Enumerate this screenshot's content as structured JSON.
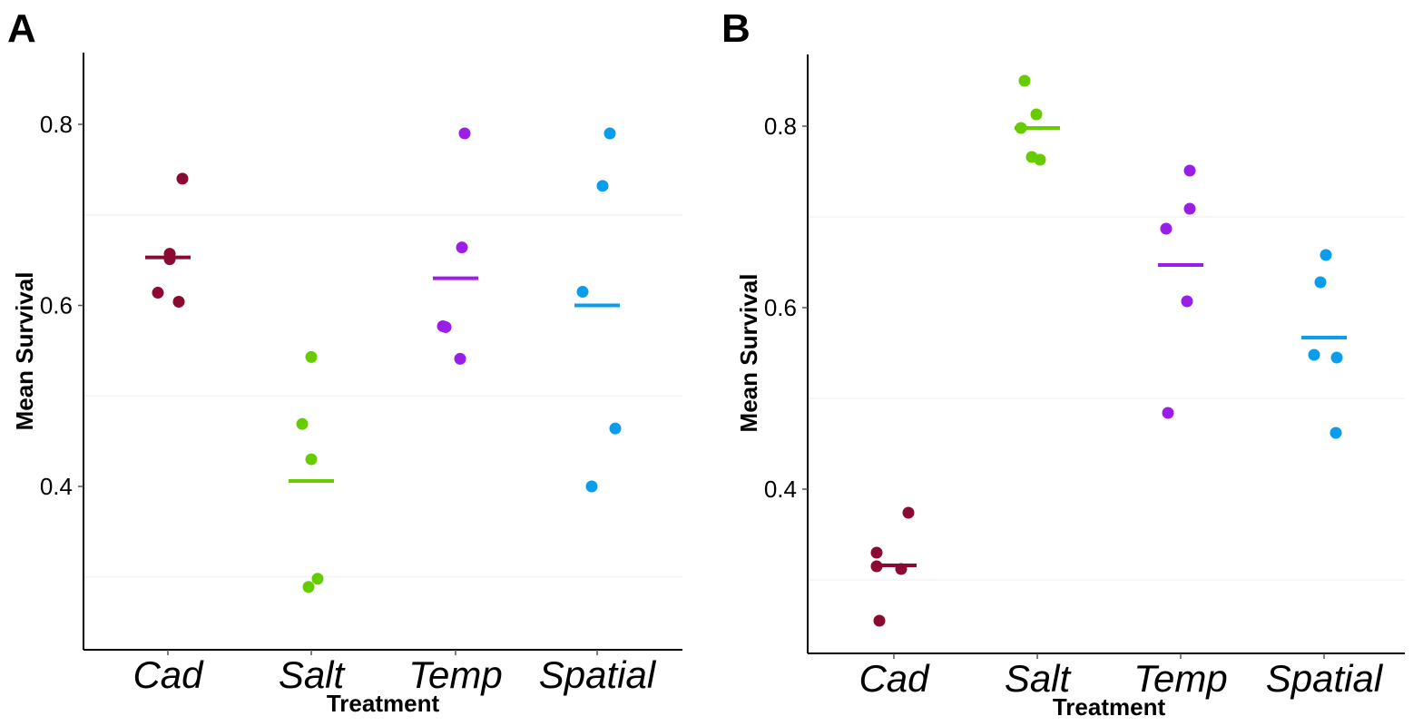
{
  "chart_data": [
    {
      "panel": "A",
      "type": "scatter",
      "xlabel": "Treatment",
      "ylabel": "Mean Survival",
      "ylim": [
        0.22,
        0.88
      ],
      "yticks": [
        0.4,
        0.6,
        0.8
      ],
      "gridlines": [
        0.3,
        0.5,
        0.7
      ],
      "categories": [
        "Cad",
        "Salt",
        "Temp",
        "Spatial"
      ],
      "series": [
        {
          "category": "Cad",
          "color": "#8b0a32",
          "points": [
            0.74,
            0.657,
            0.651,
            0.614,
            0.604
          ],
          "mean": 0.653
        },
        {
          "category": "Salt",
          "color": "#66cc00",
          "points": [
            0.543,
            0.469,
            0.43,
            0.298,
            0.289
          ],
          "mean": 0.406
        },
        {
          "category": "Temp",
          "color": "#9b1de8",
          "points": [
            0.79,
            0.664,
            0.577,
            0.576,
            0.541
          ],
          "mean": 0.63
        },
        {
          "category": "Spatial",
          "color": "#0a9dee",
          "points": [
            0.79,
            0.732,
            0.615,
            0.464,
            0.4
          ],
          "mean": 0.6
        }
      ]
    },
    {
      "panel": "B",
      "type": "scatter",
      "xlabel": "Treatment",
      "ylabel": "Mean Survival",
      "ylim": [
        0.22,
        0.88
      ],
      "yticks": [
        0.4,
        0.6,
        0.8
      ],
      "gridlines": [
        0.3,
        0.5,
        0.7
      ],
      "categories": [
        "Cad",
        "Salt",
        "Temp",
        "Spatial"
      ],
      "series": [
        {
          "category": "Cad",
          "color": "#8b0a32",
          "points": [
            0.374,
            0.33,
            0.315,
            0.312,
            0.255
          ],
          "mean": 0.316
        },
        {
          "category": "Salt",
          "color": "#66cc00",
          "points": [
            0.85,
            0.813,
            0.798,
            0.766,
            0.763
          ],
          "mean": 0.798
        },
        {
          "category": "Temp",
          "color": "#9b1de8",
          "points": [
            0.751,
            0.709,
            0.687,
            0.607,
            0.484
          ],
          "mean": 0.647
        },
        {
          "category": "Spatial",
          "color": "#0a9dee",
          "points": [
            0.658,
            0.628,
            0.548,
            0.545,
            0.462
          ],
          "mean": 0.567
        }
      ]
    }
  ]
}
